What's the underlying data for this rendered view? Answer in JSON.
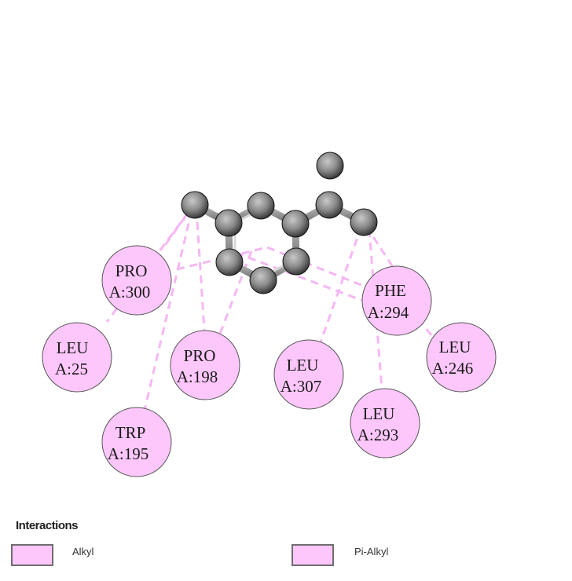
{
  "colors": {
    "residue_fill": "#fec7fb",
    "residue_stroke": "#555555",
    "interaction_line": "#f5b7f3",
    "atom": "#8c8c8c",
    "bond": "#9a9a9a"
  },
  "residues": [
    {
      "id": "pro300",
      "name": "PRO",
      "chain_pos": "A:300",
      "type": "Alkyl"
    },
    {
      "id": "leu25",
      "name": "LEU",
      "chain_pos": "A:25",
      "type": "Alkyl"
    },
    {
      "id": "pro198",
      "name": "PRO",
      "chain_pos": "A:198",
      "type": "Alkyl"
    },
    {
      "id": "trp195",
      "name": "TRP",
      "chain_pos": "A:195",
      "type": "Pi-Alkyl"
    },
    {
      "id": "leu307",
      "name": "LEU",
      "chain_pos": "A:307",
      "type": "Alkyl"
    },
    {
      "id": "phe294",
      "name": "PHE",
      "chain_pos": "A:294",
      "type": "Pi-Alkyl"
    },
    {
      "id": "leu246",
      "name": "LEU",
      "chain_pos": "A:246",
      "type": "Alkyl"
    },
    {
      "id": "leu293",
      "name": "LEU",
      "chain_pos": "A:293",
      "type": "Alkyl"
    }
  ],
  "legend": {
    "title": "Interactions",
    "items": [
      {
        "label": "Alkyl",
        "color": "#fec7fb"
      },
      {
        "label": "Pi-Alkyl",
        "color": "#fec7fb"
      }
    ]
  }
}
